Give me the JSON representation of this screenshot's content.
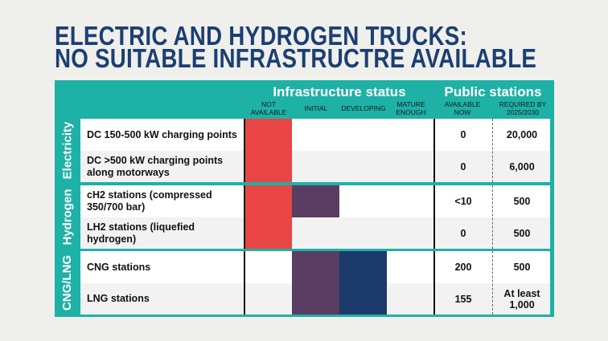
{
  "title": {
    "line1": "ELECTRIC AND HYDROGEN TRUCKS:",
    "line2": "NO SUITABLE INFRASTRUCTRE AVAILABLE"
  },
  "headers": {
    "infrastructure_status": "Infrastructure status",
    "public_stations": "Public stations",
    "not_available": "NOT AVAILABLE",
    "initial": "INITIAL",
    "developing": "DEVELOPING",
    "mature": "MATURE ENOUGH",
    "available_now": "AVAILABLE NOW",
    "required": "REQUIRED BY 2025/2030"
  },
  "colors": {
    "not_available": "#e84545",
    "initial": "#5a3d63",
    "developing": "#1c3a6c",
    "teal": "#1eb1a6",
    "title": "#1b3f73"
  },
  "groups": [
    {
      "name": "Electricity",
      "rows": [
        {
          "label": "DC 150-500 kW charging points",
          "status": [
            "not_available"
          ],
          "available": "0",
          "required": "20,000"
        },
        {
          "label": "DC >500 kW charging points along motorways",
          "status": [
            "not_available"
          ],
          "available": "0",
          "required": "6,000"
        }
      ]
    },
    {
      "name": "Hydrogen",
      "rows": [
        {
          "label": "cH2 stations (compressed 350/700 bar)",
          "status": [
            "not_available",
            "initial"
          ],
          "available": "<10",
          "required": "500"
        },
        {
          "label": "LH2 stations (liquefied hydrogen)",
          "status": [
            "not_available"
          ],
          "available": "0",
          "required": "500"
        }
      ]
    },
    {
      "name": "CNG/LNG",
      "rows": [
        {
          "label": "CNG stations",
          "status": [
            "initial",
            "developing"
          ],
          "available": "200",
          "required": "500"
        },
        {
          "label": "LNG stations",
          "status": [
            "initial",
            "developing"
          ],
          "available": "155",
          "required": "At least 1,000"
        }
      ]
    }
  ]
}
